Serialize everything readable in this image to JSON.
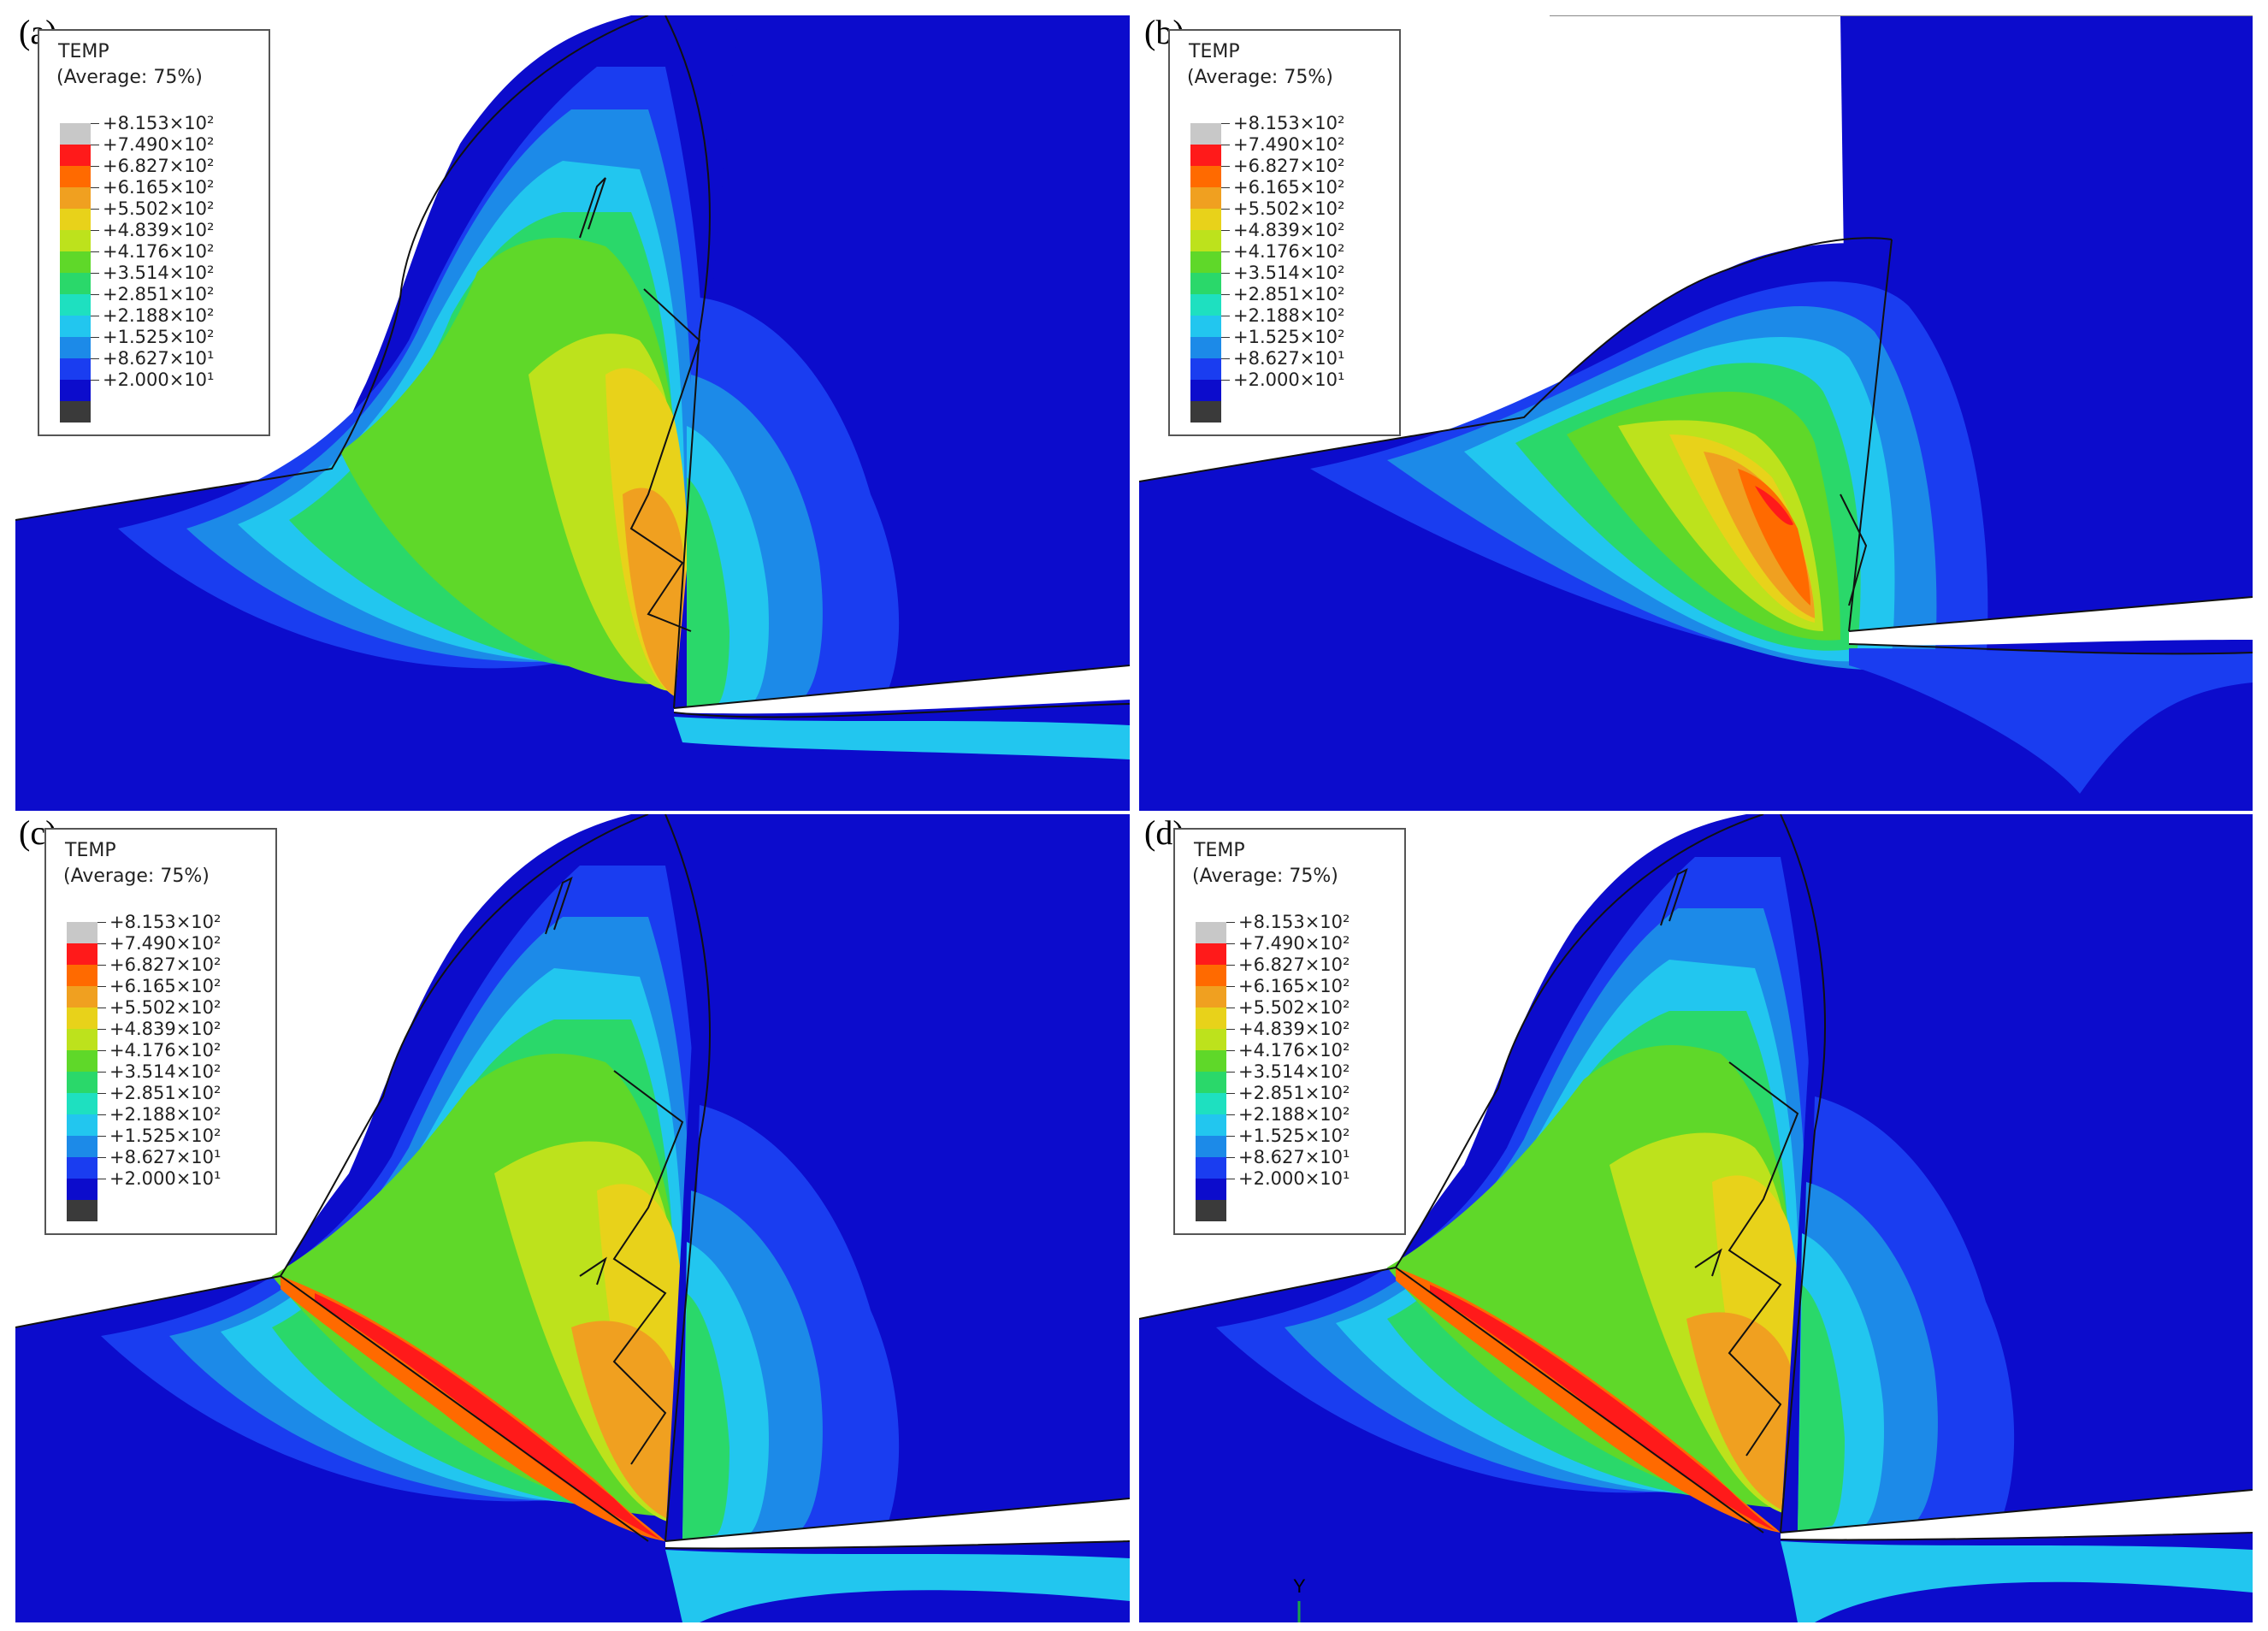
{
  "legend": {
    "variable": "TEMP",
    "average": "(Average: 75%)",
    "values": [
      "+8.153×10²",
      "+7.490×10²",
      "+6.827×10²",
      "+6.165×10²",
      "+5.502×10²",
      "+4.839×10²",
      "+4.176×10²",
      "+3.514×10²",
      "+2.851×10²",
      "+2.188×10²",
      "+1.525×10²",
      "+8.627×10¹",
      "+2.000×10¹"
    ],
    "colors": [
      "#c8c8c8",
      "#ff1a1a",
      "#ff6a00",
      "#f0a020",
      "#e8d21a",
      "#bde21c",
      "#5fd829",
      "#2ad86a",
      "#1ee0c0",
      "#22c6ef",
      "#1c8ae8",
      "#1a3df0",
      "#0c0ccc",
      "#3a3a3a"
    ]
  },
  "panels": [
    {
      "label": "(a)"
    },
    {
      "label": "(b)"
    },
    {
      "label": "(c)"
    },
    {
      "label": "(d)"
    }
  ],
  "triad_label": "Y"
}
